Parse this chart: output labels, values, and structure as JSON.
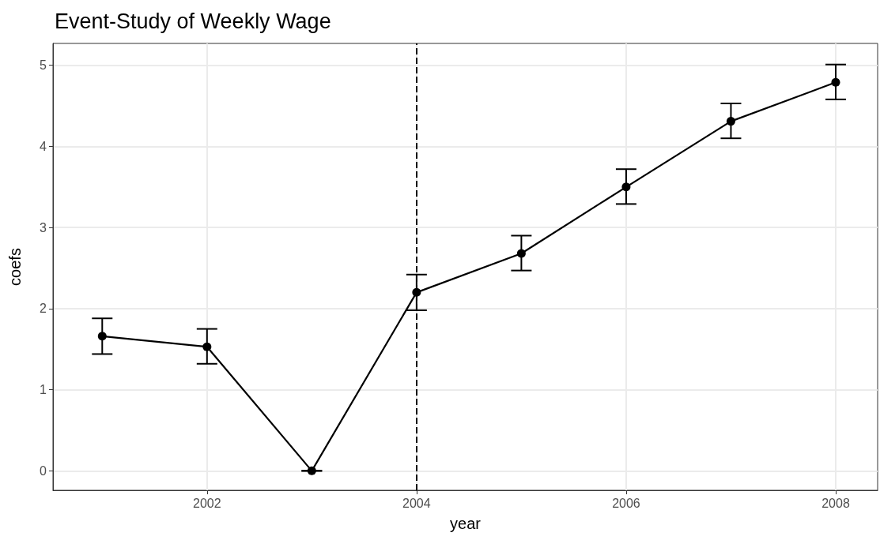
{
  "chart_data": {
    "type": "line",
    "title": "Event-Study of Weekly Wage",
    "xlabel": "year",
    "ylabel": "coefs",
    "x": [
      2001,
      2002,
      2003,
      2004,
      2005,
      2006,
      2007,
      2008
    ],
    "series": [
      {
        "color": "#000000",
        "values": [
          1.66,
          1.53,
          0,
          2.2,
          2.68,
          3.5,
          4.31,
          4.79
        ],
        "errors": [
          [
            1.44,
            1.88
          ],
          [
            1.32,
            1.75
          ],
          [
            0,
            0
          ],
          [
            1.98,
            2.42
          ],
          [
            2.47,
            2.9
          ],
          [
            3.29,
            3.72
          ],
          [
            4.1,
            4.53
          ],
          [
            4.58,
            5.01
          ]
        ]
      }
    ],
    "xlim": [
      2000.53,
      2008.4
    ],
    "xticks": [
      2002,
      2004,
      2006,
      2008
    ],
    "ylim": [
      -0.24,
      5.27
    ],
    "yticks": [
      0,
      1,
      2,
      3,
      4,
      5
    ],
    "ref_lines": [
      {
        "axis": "x",
        "value": 2004,
        "color": "#000000",
        "line_style": "dashed"
      }
    ],
    "grid": true,
    "marker": "circle",
    "line_style": "solid"
  }
}
